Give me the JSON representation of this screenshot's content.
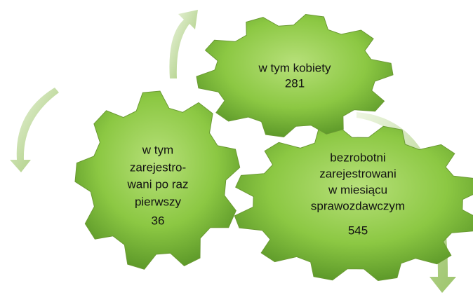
{
  "gears": [
    {
      "label_lines": [
        "bezrobotni",
        "zarejestrowani",
        "w miesiącu",
        "sprawozdawczym"
      ],
      "value": 545
    },
    {
      "label_lines": [
        "w tym kobiety"
      ],
      "value": 281
    },
    {
      "label_lines": [
        "w tym",
        "zarejestro-",
        "wani po raz",
        "pierwszy"
      ],
      "value": 36
    }
  ]
}
